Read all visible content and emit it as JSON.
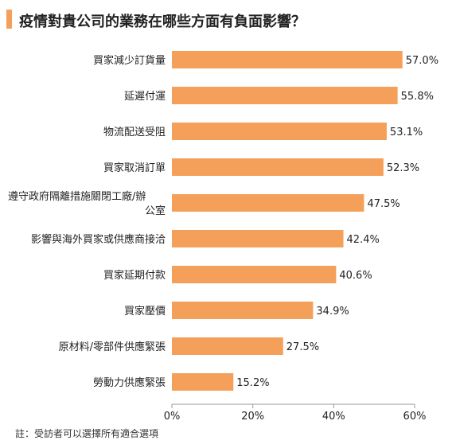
{
  "theme": {
    "accent": "#F5A05A",
    "bar": "#F5A05A",
    "text": "#222222",
    "axis": "#999999",
    "grid": "#d9d9d9"
  },
  "chart_data": {
    "type": "bar",
    "orientation": "horizontal",
    "title": "疫情對貴公司的業務在哪些方面有負面影響？",
    "note": "註：受訪者可以選擇所有適合選項",
    "categories": [
      "買家減少訂貨量",
      "延遲付運",
      "物流配送受阻",
      "買家取消訂單",
      "遵守政府隔離措施關閉工廠/辦公室",
      "影響與海外買家或供應商接洽",
      "買家延期付款",
      "買家壓價",
      "原材料/零部件供應緊張",
      "勞動力供應緊張"
    ],
    "category_lines": [
      [
        "買家減少訂貨量"
      ],
      [
        "延遲付運"
      ],
      [
        "物流配送受阻"
      ],
      [
        "買家取消訂單"
      ],
      [
        "遵守政府隔離措施關閉工廠/辦",
        "公室"
      ],
      [
        "影響與海外買家或供應商接洽"
      ],
      [
        "買家延期付款"
      ],
      [
        "買家壓價"
      ],
      [
        "原材料/零部件供應緊張"
      ],
      [
        "勞動力供應緊張"
      ]
    ],
    "values": [
      57.0,
      55.8,
      53.1,
      52.3,
      47.5,
      42.4,
      40.6,
      34.9,
      27.5,
      15.2
    ],
    "value_labels": [
      "57.0%",
      "55.8%",
      "53.1%",
      "52.3%",
      "47.5%",
      "42.4%",
      "40.6%",
      "34.9%",
      "27.5%",
      "15.2%"
    ],
    "xlim": [
      0,
      60
    ],
    "xticks": [
      0,
      20,
      40,
      60
    ],
    "xtick_labels": [
      "0%",
      "20%",
      "40%",
      "60%"
    ],
    "grid": false,
    "legend": "none"
  }
}
